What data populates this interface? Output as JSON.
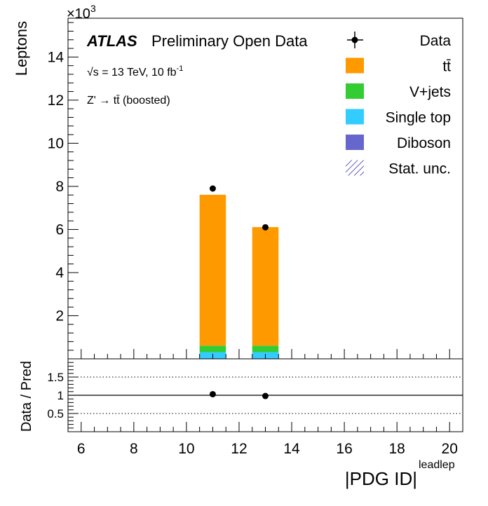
{
  "chart_data": [
    {
      "type": "bar",
      "stacked": true,
      "panel": "main",
      "ylabel": "Leptons",
      "y_exponent_label": "×10",
      "y_exponent_power": "3",
      "ylim": [
        0,
        15.8
      ],
      "y_ticks": [
        2,
        4,
        6,
        8,
        10,
        12,
        14
      ],
      "xlim": [
        5.5,
        20.5
      ],
      "bins": [
        {
          "lo": 10.5,
          "hi": 11.5
        },
        {
          "lo": 12.5,
          "hi": 13.5
        }
      ],
      "series": [
        {
          "name": "Diboson",
          "color": "#6666cc",
          "values": [
            0.01,
            0.01
          ]
        },
        {
          "name": "Single top",
          "color": "#33ccff",
          "values": [
            0.3,
            0.3
          ]
        },
        {
          "name": "V+jets",
          "color": "#33cc33",
          "values": [
            0.3,
            0.3
          ]
        },
        {
          "name": "tt̄",
          "color": "#ff9900",
          "values": [
            7.0,
            5.5
          ]
        }
      ],
      "data_points": {
        "name": "Data",
        "x": [
          11,
          13
        ],
        "y": [
          7.9,
          6.1
        ]
      },
      "annotations": {
        "atlas": "ATLAS",
        "preliminary": "Preliminary Open Data",
        "energy_text": "√s = 13 TeV, 10 fb",
        "energy_sup": "-1",
        "channel": "Z' → tt̄ (boosted)"
      },
      "legend": {
        "placement": "top-right",
        "entries": [
          {
            "label": "Data",
            "kind": "marker",
            "color": "#000000"
          },
          {
            "label": "tt̄",
            "kind": "box",
            "color": "#ff9900"
          },
          {
            "label": "V+jets",
            "kind": "box",
            "color": "#33cc33"
          },
          {
            "label": "Single top",
            "kind": "box",
            "color": "#33ccff"
          },
          {
            "label": "Diboson",
            "kind": "box",
            "color": "#6666cc"
          },
          {
            "label": "Stat. unc.",
            "kind": "hatch",
            "color": "#000099"
          }
        ]
      }
    },
    {
      "type": "scatter",
      "panel": "ratio",
      "ylabel": "Data / Pred",
      "ylim": [
        0,
        2
      ],
      "y_ticks": [
        0.5,
        1,
        1.5
      ],
      "y_tick_labels": [
        "0.5",
        "1",
        "1.5"
      ],
      "reference_line": 1,
      "dotted_lines": [
        0.5,
        1.5
      ],
      "x": [
        11,
        13
      ],
      "y": [
        1.03,
        0.98
      ],
      "x_ticks": [
        6,
        8,
        10,
        12,
        14,
        16,
        18,
        20
      ],
      "xlabel": "|PDG ID|",
      "xlabel_sup": "leadlep"
    }
  ]
}
